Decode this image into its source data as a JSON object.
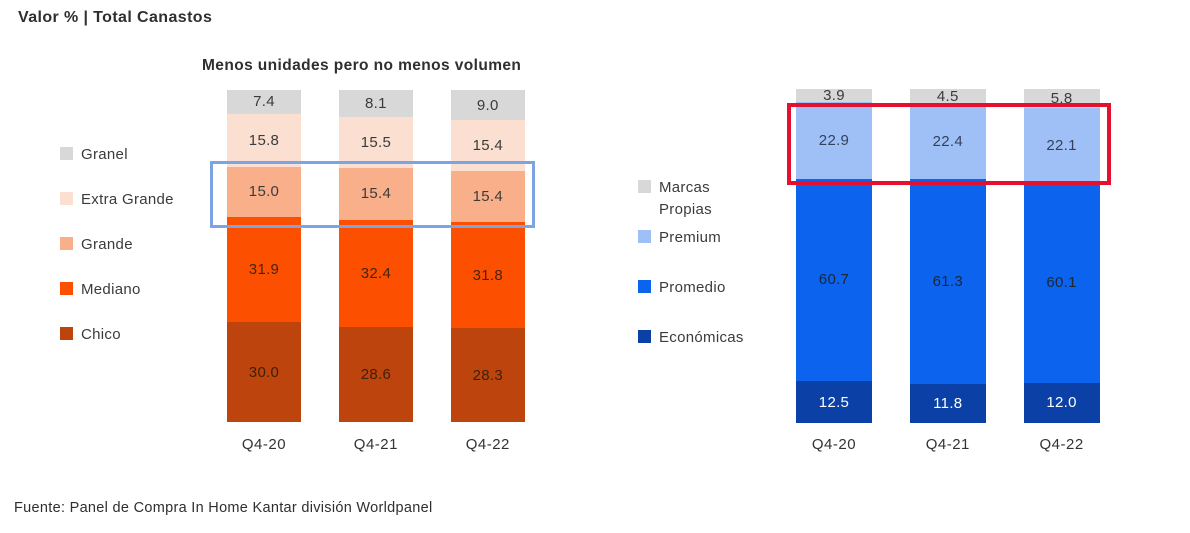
{
  "page": {
    "title": "Valor % | Total Canastos",
    "source": "Fuente: Panel de Compra In Home Kantar división Worldpanel"
  },
  "chart_data": [
    {
      "id": "pack-sizes",
      "type": "bar",
      "stacked": true,
      "title": "Menos unidades pero no menos volumen",
      "unit": "valor %",
      "categories": [
        "Q4-20",
        "Q4-21",
        "Q4-22"
      ],
      "series": [
        {
          "name": "Granel",
          "color": "#D8D8D8",
          "label_color": "#3B3B3B",
          "values": [
            7.4,
            8.1,
            9.0
          ]
        },
        {
          "name": "Extra Grande",
          "color": "#FBDFD0",
          "label_color": "#3B3B3B",
          "values": [
            15.8,
            15.5,
            15.4
          ]
        },
        {
          "name": "Grande",
          "color": "#F9B08A",
          "label_color": "#3B3B3B",
          "values": [
            15.0,
            15.4,
            15.4
          ]
        },
        {
          "name": "Mediano",
          "color": "#FC4F00",
          "label_color": "#46250F",
          "values": [
            31.9,
            32.4,
            31.8
          ]
        },
        {
          "name": "Chico",
          "color": "#BE440D",
          "label_color": "#3F2008",
          "values": [
            30.0,
            28.6,
            28.3
          ]
        }
      ],
      "legend_position": "left",
      "highlight": {
        "series": "Grande",
        "box_color": "#7AA4E4"
      }
    },
    {
      "id": "price-tiers",
      "type": "bar",
      "stacked": true,
      "title": "",
      "unit": "valor %",
      "categories": [
        "Q4-20",
        "Q4-21",
        "Q4-22"
      ],
      "series": [
        {
          "name": "Marcas Propias",
          "color": "#D8D8D8",
          "label_color": "#3B3B3B",
          "values": [
            3.9,
            4.5,
            5.8
          ]
        },
        {
          "name": "Premium",
          "color": "#9FC0F6",
          "label_color": "#33415C",
          "values": [
            22.9,
            22.4,
            22.1
          ]
        },
        {
          "name": "Promedio",
          "color": "#0B63EE",
          "label_color": "#1E2735",
          "values": [
            60.7,
            61.3,
            60.1
          ]
        },
        {
          "name": "Económicas",
          "color": "#0B41A6",
          "label_color": "#FFFFFF",
          "values": [
            12.5,
            11.8,
            12.0
          ]
        }
      ],
      "legend_position": "left",
      "highlight": {
        "series": "Premium",
        "box_color": "#E5102F"
      }
    }
  ]
}
